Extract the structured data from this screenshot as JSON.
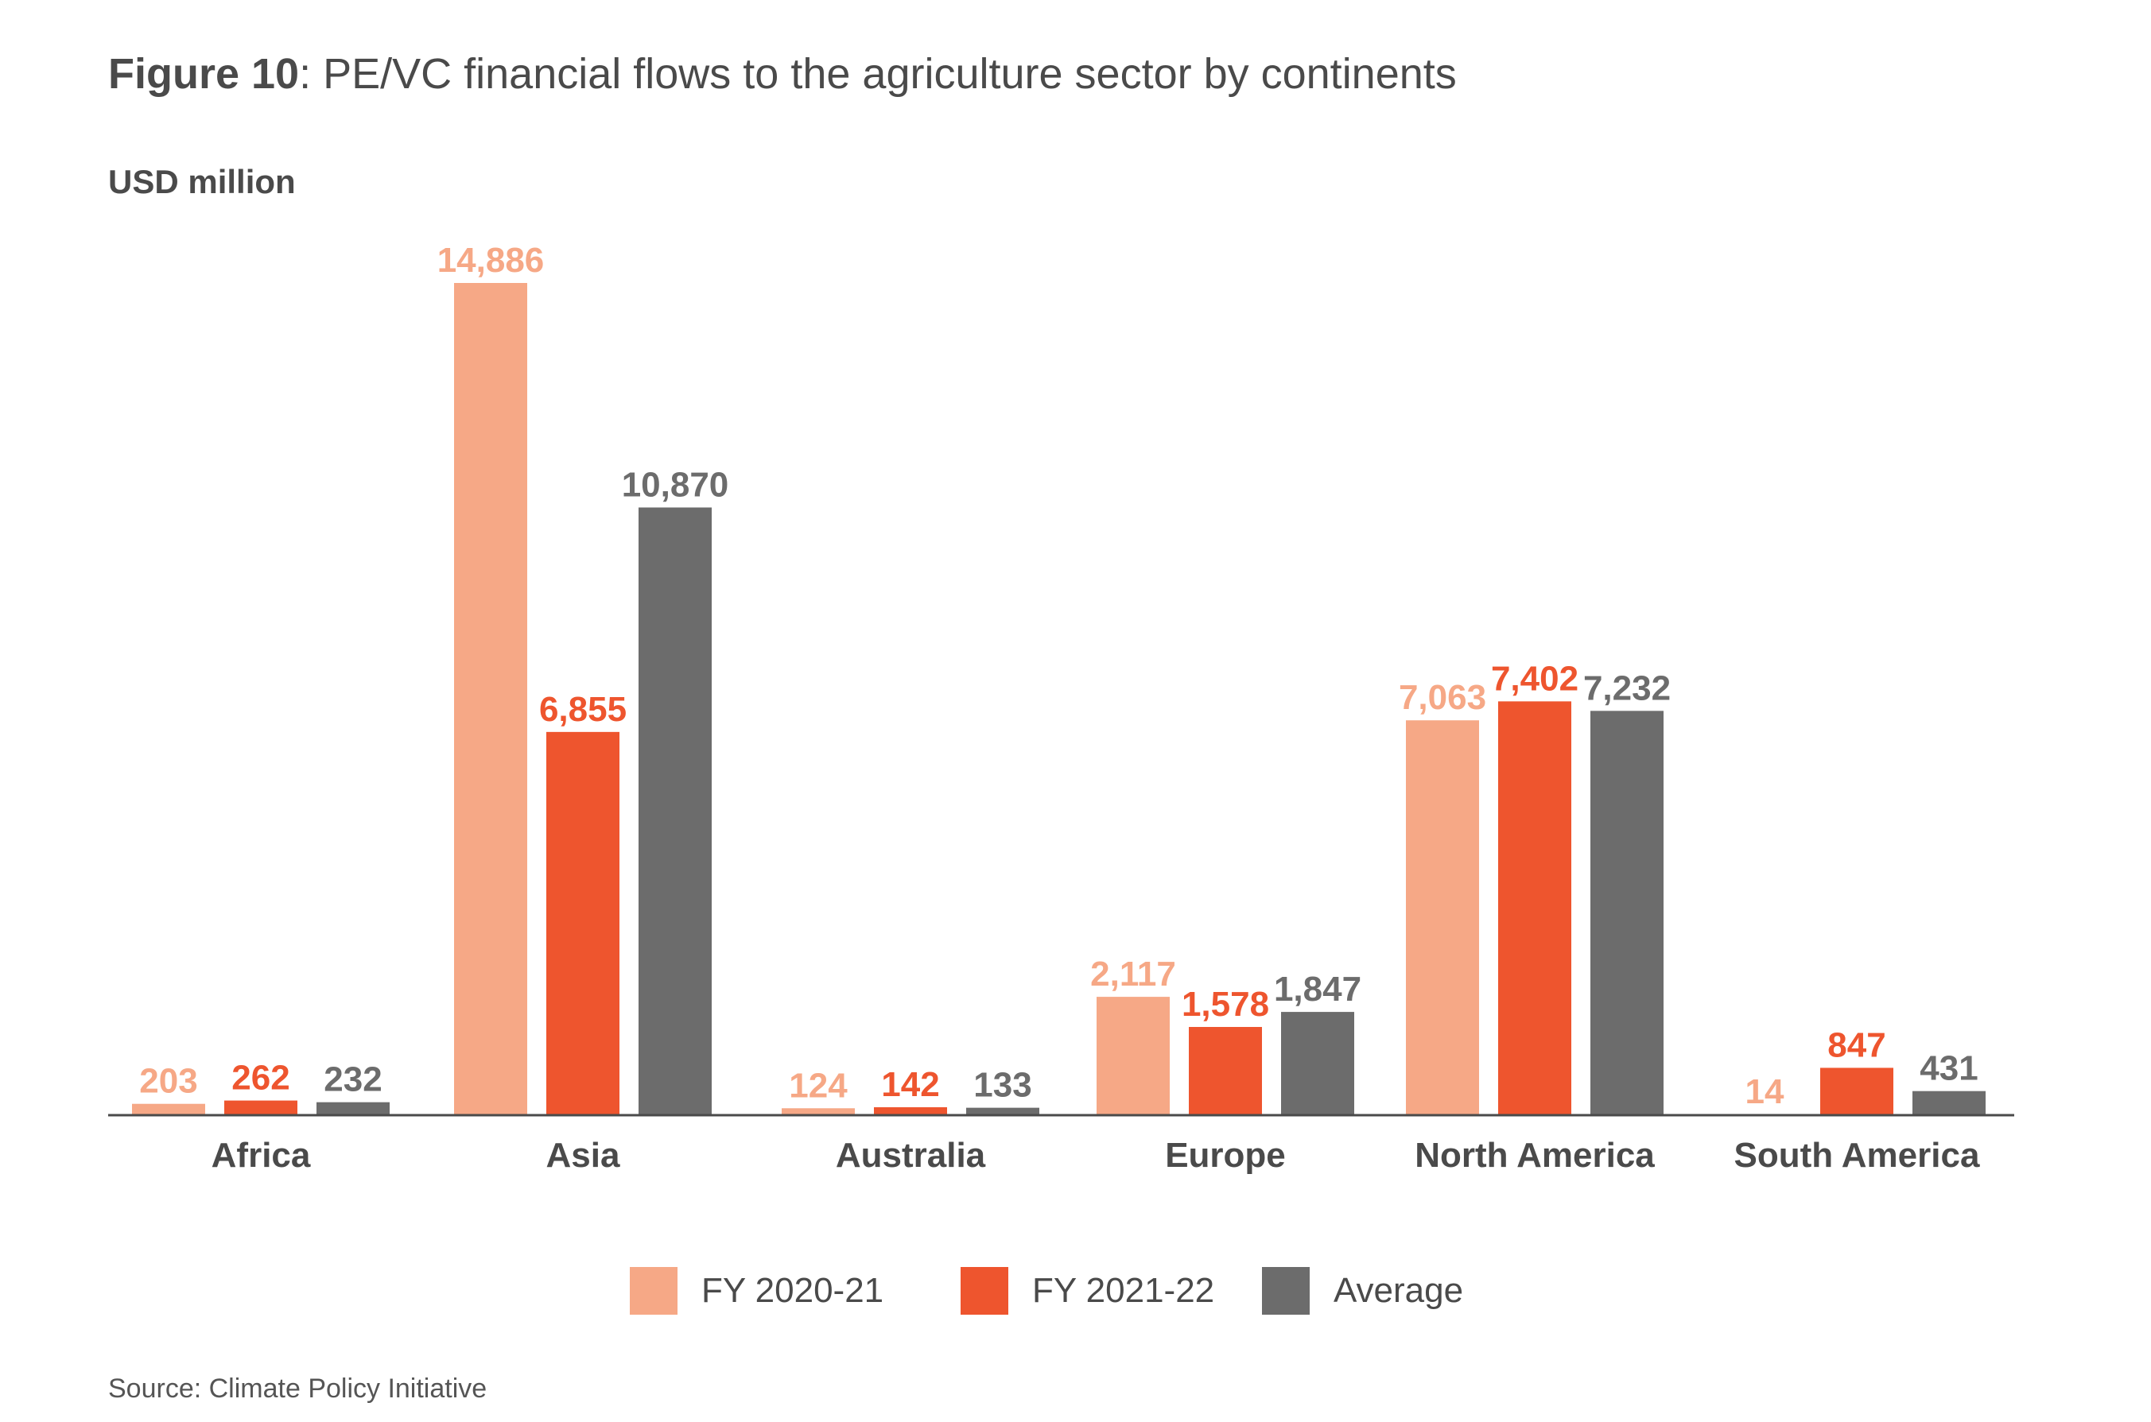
{
  "title": {
    "figure_label": "Figure 10",
    "text": ": PE/VC financial flows to the agriculture sector by continents"
  },
  "unit_label": "USD million",
  "source": "Source: Climate Policy Initiative",
  "colors": {
    "fy2020": "#f6a886",
    "fy2021": "#ee552e",
    "average": "#6c6c6c",
    "axis": "#4a4a4a"
  },
  "chart_data": {
    "type": "bar",
    "categories": [
      "Africa",
      "Asia",
      "Australia",
      "Europe",
      "North America",
      "South America"
    ],
    "series": [
      {
        "name": "FY 2020-21",
        "values": [
          203,
          14886,
          124,
          2117,
          7063,
          14
        ],
        "labels": [
          "203",
          "14,886",
          "124",
          "2,117",
          "7,063",
          "14"
        ]
      },
      {
        "name": "FY 2021-22",
        "values": [
          262,
          6855,
          142,
          1578,
          7402,
          847
        ],
        "labels": [
          "262",
          "6,855",
          "142",
          "1,578",
          "7,402",
          "847"
        ]
      },
      {
        "name": "Average",
        "values": [
          232,
          10870,
          133,
          1847,
          7232,
          431
        ],
        "labels": [
          "232",
          "10,870",
          "133",
          "1,847",
          "7,232",
          "431"
        ]
      }
    ],
    "ylabel": "USD million",
    "ylim": [
      0,
      14886
    ],
    "grid": false,
    "legend": "bottom-center"
  }
}
